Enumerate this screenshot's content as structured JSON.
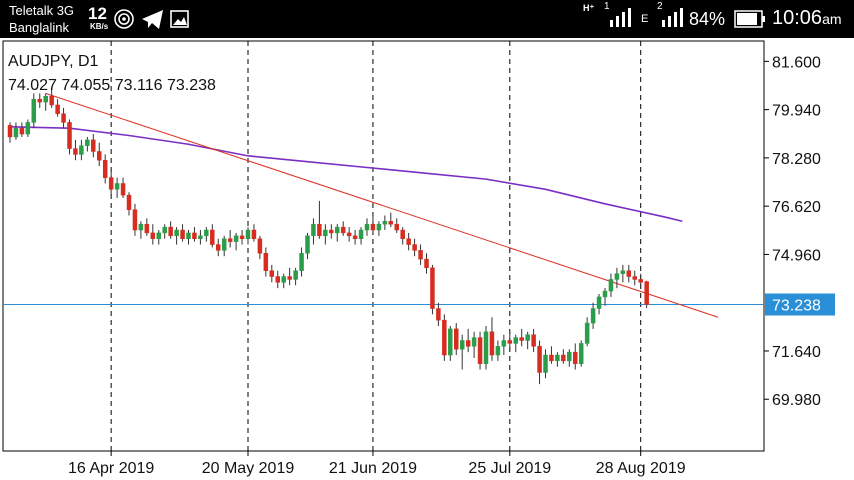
{
  "statusbar": {
    "carrier1": "Teletalk 3G",
    "carrier2": "Banglalink",
    "speed": "12",
    "speed_unit": "KB/s",
    "sim1_label": "1",
    "sim1_net": "H⁺",
    "sim2_label": "2",
    "sim2_net": "E",
    "battery": "84%",
    "time": "10:06",
    "ampm": "am",
    "icons": [
      "hotspot-icon",
      "telegram-icon",
      "gallery-icon",
      "signal-icon",
      "battery-icon"
    ]
  },
  "chart_data": {
    "type": "candlestick",
    "symbol_title": "AUDJPY, D1",
    "ohlc_label": "74.027 74.055 73.116 73.238",
    "current_price": 73.238,
    "current_price_label": "73.238",
    "y_ticks": [
      "81.600",
      "79.940",
      "78.280",
      "76.620",
      "74.960",
      "71.640",
      "69.980"
    ],
    "x_ticks": [
      "16 Apr 2019",
      "20 May 2019",
      "21 Jun 2019",
      "25 Jul 2019",
      "28 Aug 2019"
    ],
    "ylim": [
      68.2,
      82.3
    ],
    "colors": {
      "up": "#2a9d4a",
      "down": "#d62d20",
      "ma": "#7a2fc4",
      "trend": "#e03020",
      "price_line": "#2b8fd8",
      "grid": "#000000"
    },
    "ohlc": [
      [
        79.4,
        79.5,
        78.8,
        79.0
      ],
      [
        79.0,
        79.5,
        78.9,
        79.3
      ],
      [
        79.3,
        79.5,
        79.0,
        79.1
      ],
      [
        79.1,
        79.6,
        79.0,
        79.5
      ],
      [
        79.5,
        80.5,
        79.3,
        80.3
      ],
      [
        80.3,
        80.5,
        80.0,
        80.2
      ],
      [
        80.2,
        80.5,
        79.9,
        80.4
      ],
      [
        80.4,
        80.7,
        80.0,
        80.1
      ],
      [
        80.1,
        80.3,
        79.7,
        79.8
      ],
      [
        79.8,
        80.0,
        79.3,
        79.5
      ],
      [
        79.5,
        79.6,
        78.4,
        78.6
      ],
      [
        78.6,
        78.9,
        78.2,
        78.4
      ],
      [
        78.4,
        78.9,
        78.2,
        78.7
      ],
      [
        78.7,
        79.0,
        78.5,
        78.9
      ],
      [
        78.9,
        79.1,
        78.3,
        78.5
      ],
      [
        78.5,
        78.8,
        78.0,
        78.2
      ],
      [
        78.2,
        78.4,
        77.4,
        77.6
      ],
      [
        77.6,
        77.8,
        77.0,
        77.2
      ],
      [
        77.2,
        77.6,
        76.9,
        77.4
      ],
      [
        77.4,
        77.6,
        76.9,
        77.0
      ],
      [
        77.0,
        77.1,
        76.3,
        76.5
      ],
      [
        76.5,
        76.7,
        75.6,
        75.8
      ],
      [
        75.8,
        76.1,
        75.5,
        76.0
      ],
      [
        76.0,
        76.2,
        75.6,
        75.7
      ],
      [
        75.7,
        76.0,
        75.3,
        75.5
      ],
      [
        75.5,
        75.8,
        75.3,
        75.7
      ],
      [
        75.7,
        76.0,
        75.5,
        75.9
      ],
      [
        75.9,
        76.1,
        75.5,
        75.6
      ],
      [
        75.6,
        75.9,
        75.3,
        75.8
      ],
      [
        75.8,
        76.0,
        75.4,
        75.5
      ],
      [
        75.5,
        75.8,
        75.3,
        75.7
      ],
      [
        75.7,
        75.9,
        75.4,
        75.5
      ],
      [
        75.5,
        75.8,
        75.3,
        75.6
      ],
      [
        75.6,
        75.9,
        75.4,
        75.8
      ],
      [
        75.8,
        76.0,
        75.2,
        75.3
      ],
      [
        75.3,
        75.5,
        74.9,
        75.1
      ],
      [
        75.1,
        75.6,
        74.9,
        75.5
      ],
      [
        75.5,
        75.8,
        75.2,
        75.4
      ],
      [
        75.4,
        75.7,
        75.1,
        75.6
      ],
      [
        75.6,
        75.8,
        75.3,
        75.5
      ],
      [
        75.5,
        75.9,
        75.3,
        75.8
      ],
      [
        75.8,
        76.0,
        75.4,
        75.5
      ],
      [
        75.5,
        75.6,
        74.8,
        75.0
      ],
      [
        75.0,
        75.2,
        74.2,
        74.4
      ],
      [
        74.4,
        74.6,
        74.0,
        74.2
      ],
      [
        74.2,
        74.4,
        73.8,
        74.0
      ],
      [
        74.0,
        74.3,
        73.8,
        74.2
      ],
      [
        74.2,
        74.5,
        73.9,
        74.1
      ],
      [
        74.1,
        74.5,
        73.9,
        74.4
      ],
      [
        74.4,
        75.2,
        74.2,
        75.0
      ],
      [
        75.0,
        75.7,
        74.8,
        75.6
      ],
      [
        75.6,
        76.2,
        75.3,
        76.0
      ],
      [
        76.0,
        76.8,
        75.5,
        75.6
      ],
      [
        75.6,
        76.0,
        75.3,
        75.8
      ],
      [
        75.8,
        76.0,
        75.5,
        75.7
      ],
      [
        75.7,
        76.0,
        75.4,
        75.9
      ],
      [
        75.9,
        76.1,
        75.6,
        75.7
      ],
      [
        75.7,
        75.9,
        75.4,
        75.6
      ],
      [
        75.6,
        75.8,
        75.3,
        75.5
      ],
      [
        75.5,
        75.9,
        75.3,
        75.8
      ],
      [
        75.8,
        76.2,
        75.6,
        76.0
      ],
      [
        76.0,
        76.3,
        75.7,
        75.8
      ],
      [
        75.8,
        76.1,
        75.6,
        76.0
      ],
      [
        76.0,
        76.3,
        75.8,
        76.1
      ],
      [
        76.1,
        76.4,
        75.9,
        76.0
      ],
      [
        76.0,
        76.2,
        75.7,
        75.8
      ],
      [
        75.8,
        75.9,
        75.3,
        75.5
      ],
      [
        75.5,
        75.7,
        75.1,
        75.3
      ],
      [
        75.3,
        75.5,
        74.9,
        75.1
      ],
      [
        75.1,
        75.3,
        74.6,
        74.8
      ],
      [
        74.8,
        75.0,
        74.3,
        74.5
      ],
      [
        74.5,
        74.6,
        72.9,
        73.1
      ],
      [
        73.1,
        73.3,
        72.5,
        72.7
      ],
      [
        72.7,
        72.9,
        71.3,
        71.5
      ],
      [
        71.5,
        72.5,
        71.3,
        72.4
      ],
      [
        72.4,
        72.6,
        71.5,
        71.7
      ],
      [
        71.7,
        72.2,
        71.0,
        72.0
      ],
      [
        72.0,
        72.4,
        71.6,
        71.8
      ],
      [
        71.8,
        72.3,
        71.4,
        72.1
      ],
      [
        72.1,
        72.3,
        71.0,
        71.2
      ],
      [
        71.2,
        72.5,
        71.0,
        72.3
      ],
      [
        72.3,
        72.8,
        71.3,
        71.5
      ],
      [
        71.5,
        72.0,
        71.3,
        71.8
      ],
      [
        71.8,
        72.2,
        71.5,
        72.0
      ],
      [
        72.0,
        72.3,
        71.7,
        71.9
      ],
      [
        71.9,
        72.2,
        71.6,
        72.1
      ],
      [
        72.1,
        72.4,
        71.8,
        72.0
      ],
      [
        72.0,
        72.3,
        71.7,
        72.2
      ],
      [
        72.2,
        72.4,
        71.6,
        71.8
      ],
      [
        71.8,
        72.0,
        70.5,
        70.9
      ],
      [
        70.9,
        71.7,
        70.7,
        71.5
      ],
      [
        71.5,
        71.8,
        71.2,
        71.3
      ],
      [
        71.3,
        71.6,
        71.1,
        71.5
      ],
      [
        71.5,
        71.7,
        71.2,
        71.3
      ],
      [
        71.3,
        71.7,
        71.1,
        71.6
      ],
      [
        71.6,
        71.9,
        71.0,
        71.2
      ],
      [
        71.2,
        72.0,
        71.1,
        71.9
      ],
      [
        71.9,
        72.8,
        71.8,
        72.6
      ],
      [
        72.6,
        73.3,
        72.4,
        73.1
      ],
      [
        73.1,
        73.6,
        72.9,
        73.5
      ],
      [
        73.5,
        73.8,
        73.2,
        73.7
      ],
      [
        73.7,
        74.3,
        73.5,
        74.1
      ],
      [
        74.1,
        74.5,
        73.8,
        74.3
      ],
      [
        74.3,
        74.6,
        74.0,
        74.4
      ],
      [
        74.4,
        74.6,
        74.0,
        74.2
      ],
      [
        74.2,
        74.4,
        73.9,
        74.1
      ],
      [
        74.1,
        74.3,
        73.8,
        74.0
      ],
      [
        74.027,
        74.055,
        73.116,
        73.238
      ]
    ],
    "ma_line": [
      [
        0,
        79.35
      ],
      [
        10,
        79.3
      ],
      [
        20,
        79.05
      ],
      [
        30,
        78.75
      ],
      [
        40,
        78.35
      ],
      [
        50,
        78.15
      ],
      [
        60,
        77.95
      ],
      [
        70,
        77.75
      ],
      [
        80,
        77.55
      ],
      [
        90,
        77.2
      ],
      [
        100,
        76.7
      ],
      [
        110,
        76.25
      ],
      [
        113,
        76.1
      ]
    ],
    "trendline": [
      [
        6,
        80.5
      ],
      [
        119,
        72.8
      ]
    ]
  }
}
